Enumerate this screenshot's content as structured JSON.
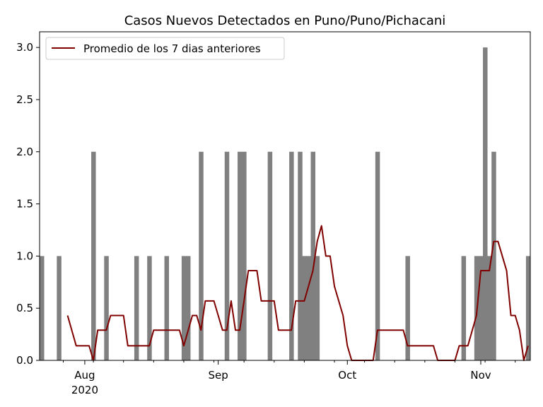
{
  "colors": {
    "bars": "#808080",
    "line": "#800000",
    "axis": "#000000",
    "background": "#ffffff"
  },
  "chart_data": {
    "type": "bar",
    "title": "Casos Nuevos Detectados en Puno/Puno/Pichacani",
    "xlabel": "",
    "ylabel": "",
    "xlim": [
      "2020-07-22",
      "2020-11-12"
    ],
    "ylim": [
      0,
      3.15
    ],
    "yticks": [
      "0.0",
      "0.5",
      "1.0",
      "1.5",
      "2.0",
      "2.5",
      "3.0"
    ],
    "xticks": [
      {
        "date": "2020-08-01",
        "label": "Aug",
        "sublabel": "2020"
      },
      {
        "date": "2020-09-01",
        "label": "Sep",
        "sublabel": ""
      },
      {
        "date": "2020-10-01",
        "label": "Oct",
        "sublabel": ""
      },
      {
        "date": "2020-11-01",
        "label": "Nov",
        "sublabel": ""
      }
    ],
    "grid": false,
    "legend": {
      "position": "top-left",
      "entries": [
        "Promedio de los 7 dias anteriores"
      ]
    },
    "series": [
      {
        "type": "bar",
        "dates": [
          "2020-07-22",
          "2020-07-26",
          "2020-08-03",
          "2020-08-06",
          "2020-08-13",
          "2020-08-16",
          "2020-08-20",
          "2020-08-24",
          "2020-08-25",
          "2020-08-28",
          "2020-09-03",
          "2020-09-06",
          "2020-09-07",
          "2020-09-13",
          "2020-09-18",
          "2020-09-20",
          "2020-09-21",
          "2020-09-22",
          "2020-09-23",
          "2020-09-24",
          "2020-10-08",
          "2020-10-15",
          "2020-10-28",
          "2020-10-31",
          "2020-11-01",
          "2020-11-02",
          "2020-11-03",
          "2020-11-04",
          "2020-11-12"
        ],
        "values": [
          1,
          1,
          2,
          1,
          1,
          1,
          1,
          1,
          1,
          2,
          2,
          2,
          2,
          2,
          2,
          2,
          1,
          1,
          2,
          1,
          2,
          1,
          1,
          1,
          1,
          3,
          1,
          2,
          1
        ]
      },
      {
        "type": "line",
        "name": "Promedio de los 7 dias anteriores",
        "points": [
          [
            "2020-07-28",
            0.43
          ],
          [
            "2020-07-30",
            0.14
          ],
          [
            "2020-08-02",
            0.14
          ],
          [
            "2020-08-03",
            0.0
          ],
          [
            "2020-08-04",
            0.29
          ],
          [
            "2020-08-06",
            0.29
          ],
          [
            "2020-08-07",
            0.43
          ],
          [
            "2020-08-10",
            0.43
          ],
          [
            "2020-08-11",
            0.14
          ],
          [
            "2020-08-16",
            0.14
          ],
          [
            "2020-08-17",
            0.29
          ],
          [
            "2020-08-23",
            0.29
          ],
          [
            "2020-08-24",
            0.14
          ],
          [
            "2020-08-26",
            0.43
          ],
          [
            "2020-08-27",
            0.43
          ],
          [
            "2020-08-28",
            0.29
          ],
          [
            "2020-08-29",
            0.57
          ],
          [
            "2020-08-31",
            0.57
          ],
          [
            "2020-09-02",
            0.29
          ],
          [
            "2020-09-03",
            0.29
          ],
          [
            "2020-09-04",
            0.57
          ],
          [
            "2020-09-05",
            0.29
          ],
          [
            "2020-09-06",
            0.29
          ],
          [
            "2020-09-07",
            0.57
          ],
          [
            "2020-09-08",
            0.86
          ],
          [
            "2020-09-10",
            0.86
          ],
          [
            "2020-09-11",
            0.57
          ],
          [
            "2020-09-14",
            0.57
          ],
          [
            "2020-09-15",
            0.29
          ],
          [
            "2020-09-18",
            0.29
          ],
          [
            "2020-09-19",
            0.57
          ],
          [
            "2020-09-21",
            0.57
          ],
          [
            "2020-09-23",
            0.86
          ],
          [
            "2020-09-24",
            1.14
          ],
          [
            "2020-09-25",
            1.29
          ],
          [
            "2020-09-26",
            1.0
          ],
          [
            "2020-09-27",
            1.0
          ],
          [
            "2020-09-28",
            0.71
          ],
          [
            "2020-09-30",
            0.43
          ],
          [
            "2020-10-01",
            0.14
          ],
          [
            "2020-10-02",
            0.0
          ],
          [
            "2020-10-07",
            0.0
          ],
          [
            "2020-10-08",
            0.29
          ],
          [
            "2020-10-14",
            0.29
          ],
          [
            "2020-10-15",
            0.14
          ],
          [
            "2020-10-21",
            0.14
          ],
          [
            "2020-10-22",
            0.0
          ],
          [
            "2020-10-26",
            0.0
          ],
          [
            "2020-10-27",
            0.14
          ],
          [
            "2020-10-29",
            0.14
          ],
          [
            "2020-10-31",
            0.43
          ],
          [
            "2020-11-01",
            0.86
          ],
          [
            "2020-11-03",
            0.86
          ],
          [
            "2020-11-04",
            1.14
          ],
          [
            "2020-11-05",
            1.14
          ],
          [
            "2020-11-07",
            0.86
          ],
          [
            "2020-11-08",
            0.43
          ],
          [
            "2020-11-09",
            0.43
          ],
          [
            "2020-11-10",
            0.29
          ],
          [
            "2020-11-11",
            0.0
          ],
          [
            "2020-11-12",
            0.14
          ]
        ]
      }
    ]
  }
}
